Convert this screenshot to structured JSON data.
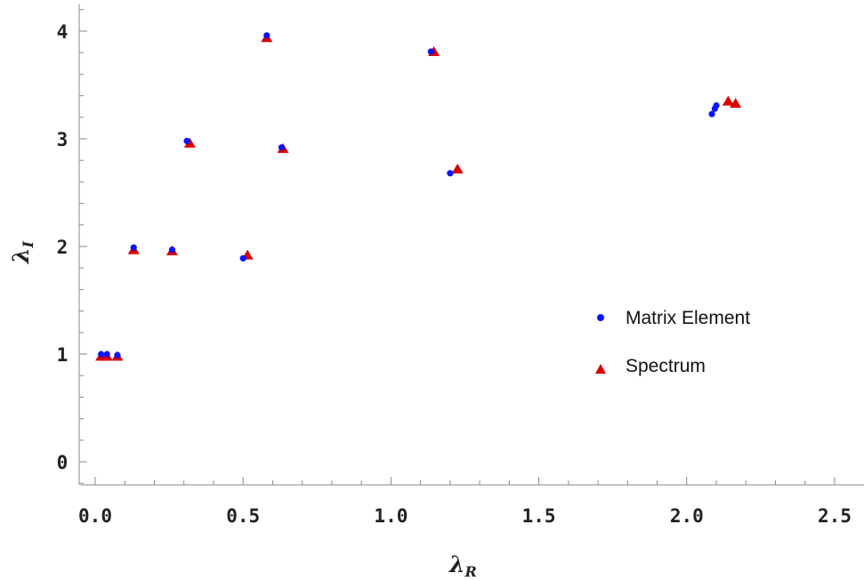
{
  "chart_data": {
    "type": "scatter",
    "title": "",
    "xlabel": {
      "main": "λ",
      "sub": "R"
    },
    "ylabel": {
      "main": "λ",
      "sub": "I"
    },
    "xlim": [
      -0.05,
      2.55
    ],
    "ylim": [
      -0.2,
      4.25
    ],
    "xticks": [
      0.0,
      0.5,
      1.0,
      1.5,
      2.0,
      2.5
    ],
    "xtick_labels": [
      "0.0",
      "0.5",
      "1.0",
      "1.5",
      "2.0",
      "2.5"
    ],
    "yticks": [
      0,
      1,
      2,
      3,
      4
    ],
    "ytick_labels": [
      "0",
      "1",
      "2",
      "3",
      "4"
    ],
    "grid": false,
    "legend_position": "right-center",
    "series": [
      {
        "name": "Matrix Element",
        "marker": "circle",
        "color": "#0a14ff",
        "points": [
          [
            0.02,
            1.0
          ],
          [
            0.04,
            1.0
          ],
          [
            0.075,
            0.99
          ],
          [
            0.13,
            1.99
          ],
          [
            0.26,
            1.97
          ],
          [
            0.31,
            2.98
          ],
          [
            0.5,
            1.89
          ],
          [
            0.58,
            3.96
          ],
          [
            0.63,
            2.92
          ],
          [
            1.135,
            3.81
          ],
          [
            1.2,
            2.68
          ],
          [
            2.085,
            3.23
          ],
          [
            2.095,
            3.28
          ],
          [
            2.1,
            3.31
          ]
        ]
      },
      {
        "name": "Spectrum",
        "marker": "triangle",
        "color": "#d80000",
        "points": [
          [
            0.02,
            0.98
          ],
          [
            0.04,
            0.98
          ],
          [
            0.075,
            0.98
          ],
          [
            0.13,
            1.97
          ],
          [
            0.26,
            1.96
          ],
          [
            0.32,
            2.96
          ],
          [
            0.515,
            1.92
          ],
          [
            0.58,
            3.94
          ],
          [
            0.635,
            2.91
          ],
          [
            1.145,
            3.81
          ],
          [
            1.225,
            2.72
          ],
          [
            2.14,
            3.35
          ],
          [
            2.165,
            3.33
          ]
        ]
      }
    ]
  }
}
